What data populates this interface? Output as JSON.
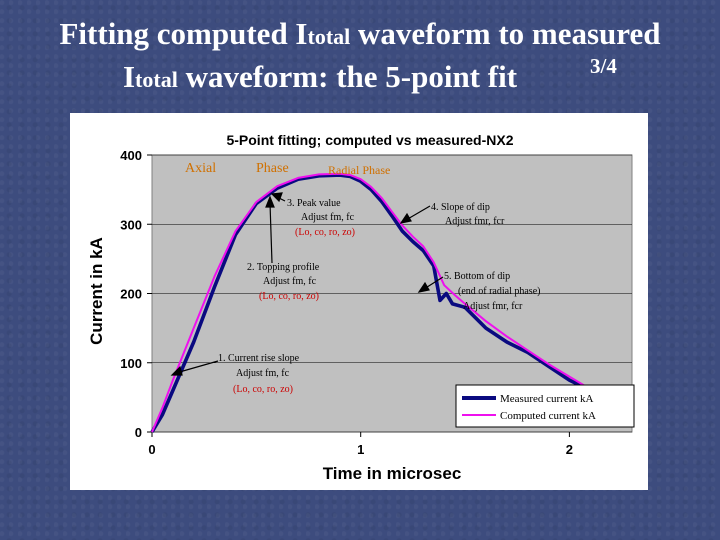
{
  "slide": {
    "title_line1_a": "Fitting computed I",
    "title_line1_sub": "total",
    "title_line1_b": " waveform to measured",
    "title_line2_a": "I",
    "title_line2_sub": "total",
    "title_line2_b": " waveform: the 5-point fit",
    "slide_number": "3/4"
  },
  "chart_data": {
    "type": "line",
    "title": "5-Point fitting; computed vs measured-NX2",
    "xlabel": "Time in microsec",
    "ylabel": "Current in kA",
    "xlim": [
      0,
      2.3
    ],
    "ylim": [
      0,
      400
    ],
    "xticks": [
      "0",
      "1",
      "2"
    ],
    "yticks": [
      "0",
      "100",
      "200",
      "300",
      "400"
    ],
    "plot_background": "#c0c0c0",
    "grid": "horizontal",
    "legend_position": "bottom-right",
    "series": [
      {
        "name": "Measured current kA",
        "color": "#0a0a80",
        "x": [
          0,
          0.05,
          0.1,
          0.2,
          0.3,
          0.4,
          0.5,
          0.6,
          0.7,
          0.8,
          0.9,
          0.95,
          1.0,
          1.05,
          1.1,
          1.15,
          1.2,
          1.25,
          1.3,
          1.35,
          1.38,
          1.41,
          1.44,
          1.5,
          1.6,
          1.7,
          1.8,
          1.9,
          2.0,
          2.1
        ],
        "y": [
          0,
          25,
          60,
          130,
          210,
          285,
          330,
          352,
          365,
          370,
          371,
          369,
          362,
          350,
          333,
          312,
          290,
          275,
          262,
          240,
          190,
          200,
          185,
          180,
          150,
          130,
          115,
          95,
          75,
          60
        ]
      },
      {
        "name": "Computed current kA",
        "color": "#ee10ee",
        "x": [
          0,
          0.05,
          0.1,
          0.2,
          0.3,
          0.4,
          0.5,
          0.6,
          0.7,
          0.8,
          0.9,
          0.95,
          1.0,
          1.05,
          1.1,
          1.15,
          1.2,
          1.25,
          1.3,
          1.35,
          1.4,
          1.45,
          1.5,
          1.6,
          1.7,
          1.8,
          1.9,
          2.0,
          2.1
        ],
        "y": [
          0,
          35,
          75,
          150,
          225,
          290,
          332,
          355,
          367,
          372,
          373,
          371,
          365,
          354,
          338,
          318,
          298,
          282,
          268,
          245,
          212,
          198,
          185,
          160,
          138,
          118,
          98,
          80,
          62
        ]
      }
    ],
    "phase_labels": {
      "axial": "Axial",
      "phase": "Phase",
      "radial": "Radial Phase"
    },
    "annotations": [
      {
        "lines": [
          "1. Current rise slope",
          "Adjust fm, fc",
          "(Lo, co, ro, zo)"
        ]
      },
      {
        "lines": [
          "2. Topping profile",
          "Adjust fm, fc",
          "(Lo, co, ro, zo)"
        ]
      },
      {
        "lines": [
          "3. Peak value",
          "Adjust fm, fc",
          "(Lo, co, ro, zo)"
        ]
      },
      {
        "lines": [
          "4. Slope of dip",
          "Adjust fmr, fcr"
        ]
      },
      {
        "lines": [
          "5. Bottom of dip",
          "(end of radial phase)",
          "Adjust fmr, fcr"
        ]
      }
    ]
  }
}
